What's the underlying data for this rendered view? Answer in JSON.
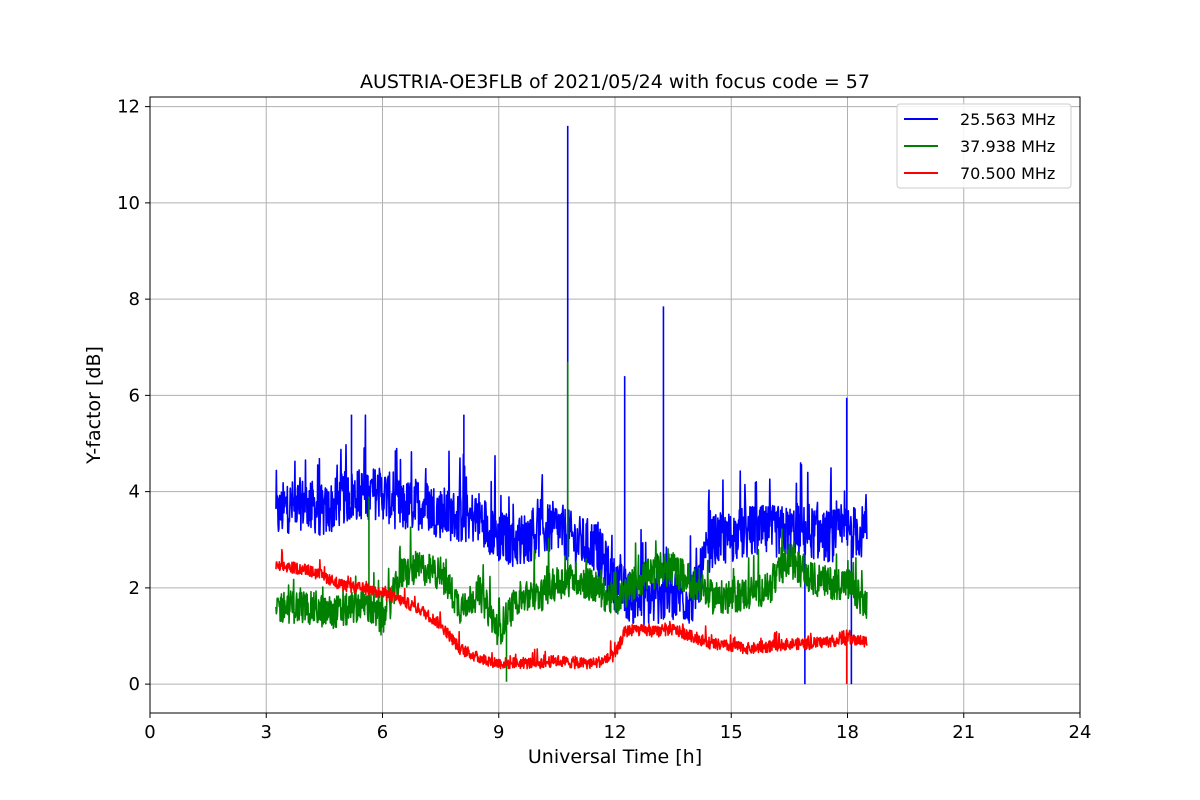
{
  "chart_data": {
    "type": "line",
    "title": "AUSTRIA-OE3FLB of 2021/05/24 with focus code = 57",
    "xlabel": "Universal Time [h]",
    "ylabel": "Y-factor [dB]",
    "xlim": [
      0,
      24
    ],
    "ylim": [
      -0.6,
      12.2
    ],
    "xticks": [
      0,
      3,
      6,
      9,
      12,
      15,
      18,
      21,
      24
    ],
    "yticks": [
      0,
      2,
      4,
      6,
      8,
      10,
      12
    ],
    "xtick_labels": [
      "0",
      "3",
      "6",
      "9",
      "12",
      "15",
      "18",
      "21",
      "24"
    ],
    "ytick_labels": [
      "0",
      "2",
      "4",
      "6",
      "8",
      "10",
      "12"
    ],
    "grid": true,
    "legend_position": "top-right",
    "series": [
      {
        "name": "25.563 MHz",
        "color": "#0000ff",
        "x": [
          3.25,
          3.5,
          4.0,
          4.5,
          5.0,
          5.5,
          6.0,
          6.5,
          7.0,
          7.5,
          8.0,
          8.5,
          9.0,
          9.5,
          10.0,
          10.5,
          11.0,
          11.5,
          12.0,
          12.5,
          13.0,
          13.5,
          14.0,
          14.5,
          15.0,
          15.5,
          16.0,
          16.5,
          17.0,
          17.5,
          18.0,
          18.5
        ],
        "values": [
          3.3,
          3.5,
          3.6,
          3.4,
          3.7,
          3.8,
          3.8,
          3.5,
          3.6,
          3.4,
          3.3,
          3.3,
          2.9,
          2.8,
          3.0,
          3.1,
          2.8,
          2.7,
          1.9,
          1.6,
          1.6,
          1.7,
          1.6,
          2.8,
          2.9,
          3.0,
          3.0,
          3.0,
          3.0,
          2.9,
          3.0,
          3.0
        ],
        "spikes": [
          [
            5.2,
            5.6
          ],
          [
            8.1,
            5.6
          ],
          [
            10.78,
            11.6
          ],
          [
            12.25,
            6.4
          ],
          [
            13.25,
            7.85
          ],
          [
            17.98,
            5.95
          ],
          [
            18.1,
            0.0
          ],
          [
            16.9,
            0.0
          ]
        ]
      },
      {
        "name": "37.938 MHz",
        "color": "#008000",
        "x": [
          3.25,
          3.5,
          4.0,
          4.5,
          5.0,
          5.5,
          6.0,
          6.5,
          7.0,
          7.5,
          8.0,
          8.5,
          9.0,
          9.5,
          10.0,
          10.5,
          11.0,
          11.5,
          12.0,
          12.5,
          13.0,
          13.5,
          14.0,
          14.5,
          15.0,
          15.5,
          16.0,
          16.5,
          17.0,
          17.5,
          18.0,
          18.5
        ],
        "values": [
          1.5,
          1.5,
          1.5,
          1.4,
          1.4,
          1.6,
          1.2,
          2.2,
          2.3,
          2.2,
          1.5,
          1.8,
          1.0,
          1.7,
          1.7,
          2.0,
          2.1,
          1.9,
          1.6,
          2.0,
          2.2,
          2.3,
          2.0,
          1.7,
          1.7,
          1.8,
          1.9,
          2.5,
          2.1,
          2.0,
          2.0,
          1.5
        ],
        "spikes": [
          [
            5.65,
            3.9
          ],
          [
            10.78,
            6.7
          ],
          [
            9.2,
            0.05
          ]
        ]
      },
      {
        "name": "70.500 MHz",
        "color": "#ff0000",
        "x": [
          3.25,
          3.5,
          4.0,
          4.5,
          5.0,
          5.5,
          6.0,
          6.5,
          7.0,
          7.5,
          8.0,
          8.5,
          9.0,
          9.5,
          10.0,
          10.5,
          11.0,
          11.5,
          12.0,
          12.25,
          12.5,
          13.0,
          13.5,
          14.0,
          14.5,
          15.0,
          15.5,
          16.0,
          16.5,
          17.0,
          17.5,
          18.0,
          18.5
        ],
        "values": [
          2.4,
          2.4,
          2.35,
          2.2,
          2.0,
          1.95,
          1.85,
          1.7,
          1.5,
          1.2,
          0.7,
          0.5,
          0.4,
          0.4,
          0.4,
          0.45,
          0.4,
          0.4,
          0.55,
          1.05,
          1.1,
          1.05,
          1.1,
          0.95,
          0.8,
          0.75,
          0.7,
          0.75,
          0.8,
          0.8,
          0.85,
          0.9,
          0.85
        ],
        "spikes": [
          [
            17.98,
            0.0
          ]
        ]
      }
    ]
  }
}
